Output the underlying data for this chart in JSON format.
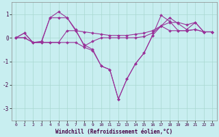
{
  "x": [
    0,
    1,
    2,
    3,
    4,
    5,
    6,
    7,
    8,
    9,
    10,
    11,
    12,
    13,
    14,
    15,
    16,
    17,
    18,
    19,
    20,
    21,
    22,
    23
  ],
  "line1": [
    0.0,
    0.2,
    -0.2,
    -0.15,
    0.85,
    1.1,
    0.85,
    0.3,
    0.25,
    0.2,
    0.15,
    0.1,
    0.1,
    0.1,
    0.15,
    0.2,
    0.3,
    0.5,
    0.65,
    0.65,
    0.55,
    0.65,
    0.25,
    0.25
  ],
  "line2": [
    0.0,
    0.2,
    -0.2,
    -0.2,
    0.85,
    0.85,
    0.85,
    0.35,
    -0.35,
    -0.15,
    0.0,
    0.0,
    0.0,
    0.0,
    0.0,
    0.05,
    0.2,
    0.5,
    0.85,
    0.6,
    0.35,
    0.65,
    0.25,
    0.25
  ],
  "line3": [
    0.0,
    0.0,
    -0.2,
    -0.2,
    -0.2,
    -0.2,
    0.3,
    0.3,
    -0.3,
    -0.5,
    -1.2,
    -1.35,
    -2.6,
    -1.75,
    -1.1,
    -0.65,
    0.1,
    0.95,
    0.7,
    0.3,
    0.3,
    0.35,
    0.25,
    0.25
  ],
  "line4": [
    0.0,
    0.0,
    -0.2,
    -0.2,
    -0.2,
    -0.2,
    -0.2,
    -0.2,
    -0.4,
    -0.55,
    -1.2,
    -1.35,
    -2.6,
    -1.75,
    -1.1,
    -0.65,
    0.1,
    0.5,
    0.3,
    0.3,
    0.3,
    0.35,
    0.25,
    0.25
  ],
  "bg_color": "#c8eef0",
  "grid_color": "#a8d8d0",
  "line_color": "#993399",
  "xlabel": "Windchill (Refroidissement éolien,°C)",
  "ylim": [
    -3.5,
    1.5
  ],
  "xlim": [
    -0.5,
    23.5
  ],
  "yticks": [
    -3,
    -2,
    -1,
    0,
    1
  ],
  "xticks": [
    0,
    1,
    2,
    3,
    4,
    5,
    6,
    7,
    8,
    9,
    10,
    11,
    12,
    13,
    14,
    15,
    16,
    17,
    18,
    19,
    20,
    21,
    22,
    23
  ]
}
